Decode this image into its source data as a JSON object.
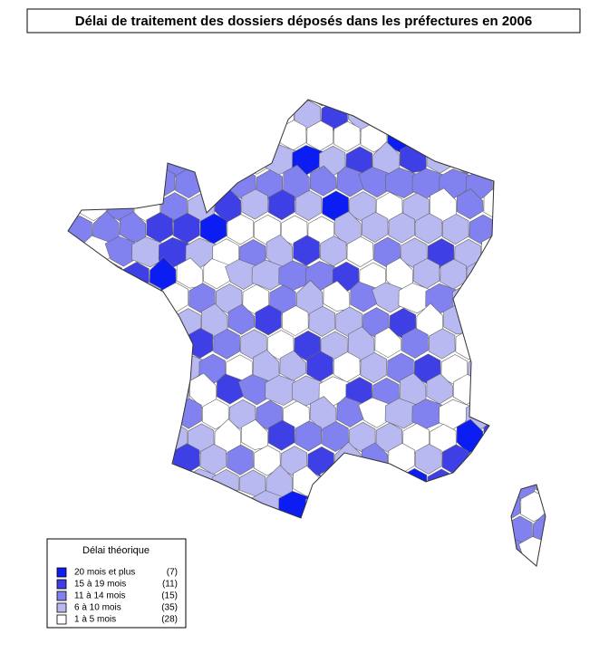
{
  "title": "Délai de traitement des dossiers déposés dans les préfectures en 2006",
  "legend": {
    "title": "Délai théorique",
    "items": [
      {
        "label": "20 mois et plus",
        "count": "(7)",
        "color": "#0b1df2"
      },
      {
        "label": "15 à 19 mois",
        "count": "(11)",
        "color": "#3f3fe6"
      },
      {
        "label": "11 à 14 mois",
        "count": "(15)",
        "color": "#8181ef"
      },
      {
        "label": "6 à 10 mois",
        "count": "(35)",
        "color": "#b9b9f1"
      },
      {
        "label": "1 à 5 mois",
        "count": "(28)",
        "color": "#ffffff"
      }
    ]
  }
}
